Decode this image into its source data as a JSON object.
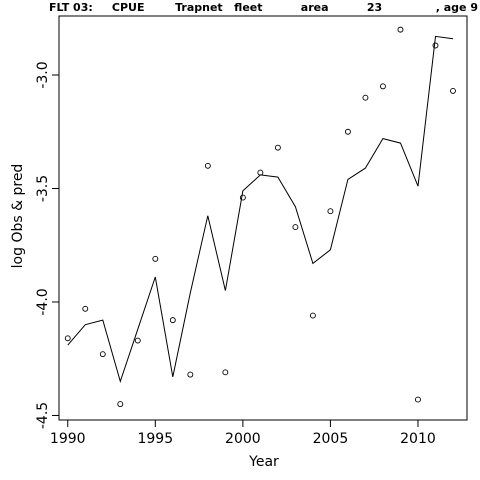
{
  "chart_data": {
    "type": "line",
    "title": "FLT 03:     CPUE        Trapnet   fleet          area          23              , age 9",
    "xlabel": "Year",
    "ylabel": "log Obs & pred",
    "xlim": [
      1989.5,
      2012.8
    ],
    "ylim": [
      -4.52,
      -2.74
    ],
    "x_ticks": [
      1990,
      1995,
      2000,
      2005,
      2010
    ],
    "y_ticks": [
      -4.5,
      -4.0,
      -3.5,
      -3.0
    ],
    "y_tick_labels": [
      "-4.5",
      "-4.0",
      "-3.5",
      "-3.0"
    ],
    "grid": false,
    "series": [
      {
        "style": "points",
        "marker": "open-circle",
        "x": [
          1990,
          1991,
          1992,
          1993,
          1994,
          1995,
          1996,
          1997,
          1998,
          1999,
          2000,
          2001,
          2002,
          2003,
          2004,
          2005,
          2006,
          2007,
          2008,
          2009,
          2010,
          2011,
          2012
        ],
        "y": [
          -4.16,
          -4.03,
          -4.23,
          -4.45,
          -4.17,
          -3.81,
          -4.08,
          -4.32,
          -3.4,
          -4.31,
          -3.54,
          -3.43,
          -3.32,
          -3.67,
          -4.06,
          -3.6,
          -3.25,
          -3.1,
          -3.05,
          -2.8,
          -4.43,
          -2.87,
          -3.07
        ]
      },
      {
        "style": "line",
        "x": [
          1990,
          1991,
          1992,
          1993,
          1994,
          1995,
          1996,
          1997,
          1998,
          1999,
          2000,
          2001,
          2002,
          2003,
          2004,
          2005,
          2006,
          2007,
          2008,
          2009,
          2010,
          2011,
          2012
        ],
        "y": [
          -4.19,
          -4.1,
          -4.08,
          -4.35,
          -4.12,
          -3.89,
          -4.33,
          -3.96,
          -3.62,
          -3.95,
          -3.51,
          -3.44,
          -3.45,
          -3.58,
          -3.83,
          -3.77,
          -3.46,
          -3.41,
          -3.28,
          -3.3,
          -3.49,
          -2.83,
          -2.84
        ]
      }
    ]
  }
}
